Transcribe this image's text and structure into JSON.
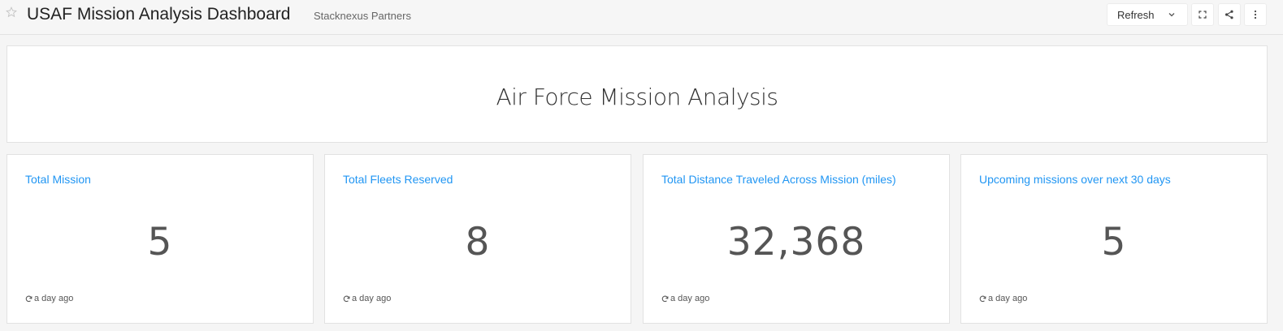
{
  "header": {
    "title": "USAF Mission Analysis Dashboard",
    "org": "Stacknexus Partners",
    "refresh_label": "Refresh"
  },
  "icons": {
    "favorite": "star-icon",
    "refresh_dropdown": "chevron-down-icon",
    "fullscreen": "fullscreen-icon",
    "share": "share-icon",
    "more": "more-vertical-icon",
    "updated": "refresh-icon"
  },
  "colors": {
    "link": "#2196f3",
    "border": "#e2e2e2",
    "background": "#f5f5f5"
  },
  "title_widget": {
    "text": "Air Force Mission Analysis"
  },
  "counters": [
    {
      "label": "Total Mission",
      "value": "5",
      "updated": "a day ago"
    },
    {
      "label": "Total Fleets Reserved",
      "value": "8",
      "updated": "a day ago"
    },
    {
      "label": "Total Distance Traveled Across Mission (miles)",
      "value": "32,368",
      "updated": "a day ago"
    },
    {
      "label": "Upcoming missions over next 30 days",
      "value": "5",
      "updated": "a day ago"
    }
  ]
}
